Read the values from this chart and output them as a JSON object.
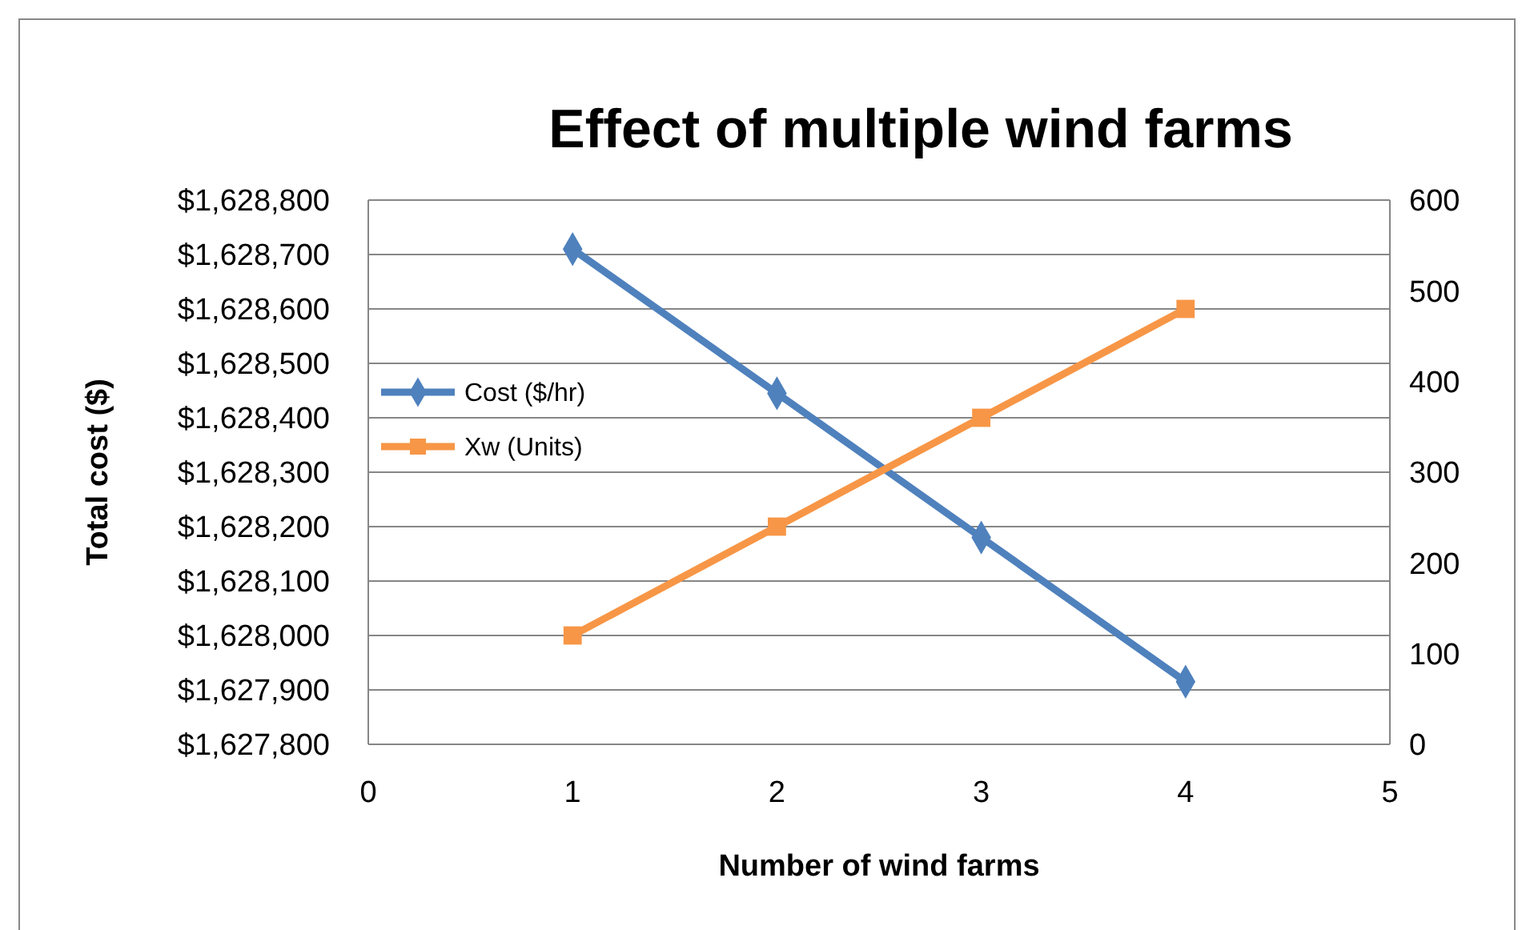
{
  "chart_data": {
    "type": "line",
    "title": "Effect of multiple wind farms",
    "xlabel": "Number of wind farms",
    "ylabel": "Total cost ($)",
    "x": [
      1,
      2,
      3,
      4
    ],
    "series": [
      {
        "name": "Cost ($/hr)",
        "color": "#4f81bd",
        "marker": "diamond",
        "values": [
          1628710,
          1628445,
          1628180,
          1627915
        ]
      },
      {
        "name": "Xw (Units)",
        "color": "#f79646",
        "marker": "square",
        "axis": "y2",
        "values": [
          120,
          240,
          360,
          480
        ]
      }
    ],
    "xlim": [
      0,
      5
    ],
    "xticks": [
      0,
      1,
      2,
      3,
      4,
      5
    ],
    "ylim": [
      1627800,
      1628800
    ],
    "yticks": [
      {
        "value": 1627800,
        "label": "$1,627,800"
      },
      {
        "value": 1627900,
        "label": "$1,627,900"
      },
      {
        "value": 1628000,
        "label": "$1,628,000"
      },
      {
        "value": 1628100,
        "label": "$1,628,100"
      },
      {
        "value": 1628200,
        "label": "$1,628,200"
      },
      {
        "value": 1628300,
        "label": "$1,628,300"
      },
      {
        "value": 1628400,
        "label": "$1,628,400"
      },
      {
        "value": 1628500,
        "label": "$1,628,500"
      },
      {
        "value": 1628600,
        "label": "$1,628,600"
      },
      {
        "value": 1628700,
        "label": "$1,628,700"
      },
      {
        "value": 1628800,
        "label": "$1,628,800"
      }
    ],
    "y2lim": [
      0,
      600
    ],
    "y2ticks": [
      0,
      100,
      200,
      300,
      400,
      500,
      600
    ],
    "grid": "y",
    "legend": "left"
  }
}
